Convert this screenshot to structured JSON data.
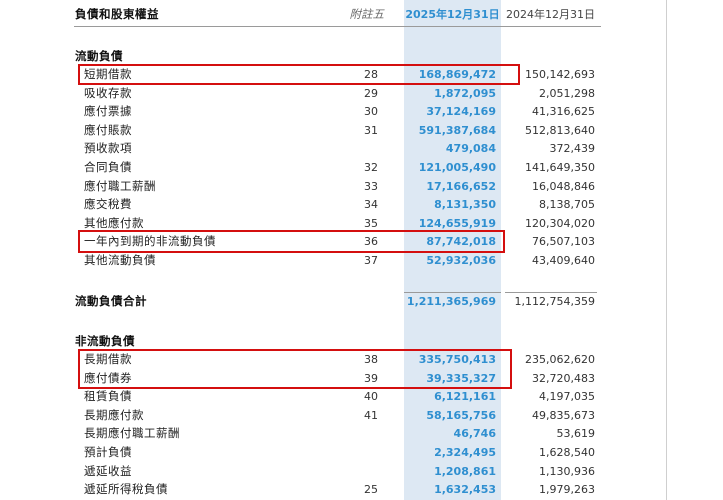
{
  "header": {
    "title": "負債和股東權益",
    "note": "附註五",
    "col_current": "2025年12月31日",
    "col_prior": "2024年12月31日"
  },
  "current_liabilities": {
    "heading": "流動負債",
    "rows": [
      {
        "label": "短期借款",
        "note": "28",
        "current": "168,869,472",
        "prior": "150,142,693"
      },
      {
        "label": "吸收存款",
        "note": "29",
        "current": "1,872,095",
        "prior": "2,051,298"
      },
      {
        "label": "應付票據",
        "note": "30",
        "current": "37,124,169",
        "prior": "41,316,625"
      },
      {
        "label": "應付賬款",
        "note": "31",
        "current": "591,387,684",
        "prior": "512,813,640"
      },
      {
        "label": "預收款項",
        "note": "",
        "current": "479,084",
        "prior": "372,439"
      },
      {
        "label": "合同負債",
        "note": "32",
        "current": "121,005,490",
        "prior": "141,649,350"
      },
      {
        "label": "應付職工薪酬",
        "note": "33",
        "current": "17,166,652",
        "prior": "16,048,846"
      },
      {
        "label": "應交稅費",
        "note": "34",
        "current": "8,131,350",
        "prior": "8,138,705"
      },
      {
        "label": "其他應付款",
        "note": "35",
        "current": "124,655,919",
        "prior": "120,304,020"
      },
      {
        "label": "一年內到期的非流動負債",
        "note": "36",
        "current": "87,742,018",
        "prior": "76,507,103"
      },
      {
        "label": "其他流動負債",
        "note": "37",
        "current": "52,932,036",
        "prior": "43,409,640"
      }
    ],
    "total": {
      "label": "流動負債合計",
      "current": "1,211,365,969",
      "prior": "1,112,754,359"
    }
  },
  "noncurrent_liabilities": {
    "heading": "非流動負債",
    "rows": [
      {
        "label": "長期借款",
        "note": "38",
        "current": "335,750,413",
        "prior": "235,062,620"
      },
      {
        "label": "應付債券",
        "note": "39",
        "current": "39,335,327",
        "prior": "32,720,483"
      },
      {
        "label": "租賃負債",
        "note": "40",
        "current": "6,121,161",
        "prior": "4,197,035"
      },
      {
        "label": "長期應付款",
        "note": "41",
        "current": "58,165,756",
        "prior": "49,835,673"
      },
      {
        "label": "長期應付職工薪酬",
        "note": "",
        "current": "46,746",
        "prior": "53,619"
      },
      {
        "label": "預計負債",
        "note": "",
        "current": "2,324,495",
        "prior": "1,628,540"
      },
      {
        "label": "遞延收益",
        "note": "",
        "current": "1,208,861",
        "prior": "1,130,936"
      },
      {
        "label": "遞延所得稅負債",
        "note": "25",
        "current": "1,632,453",
        "prior": "1,979,263"
      }
    ]
  },
  "colors": {
    "highlight_box": "#d40f0f",
    "current_value": "#2f8fd0",
    "current_column_bg": "#dde8f3"
  }
}
